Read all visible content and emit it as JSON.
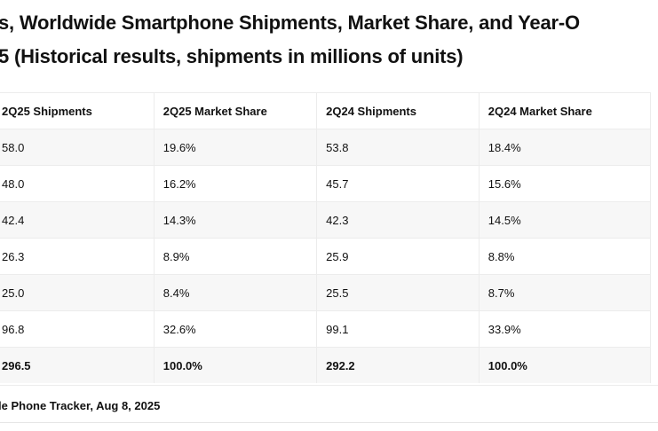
{
  "title_line1": "s, Worldwide Smartphone Shipments, Market Share, and Year-O",
  "title_line2": "5 (Historical results, shipments in millions of units)",
  "table": {
    "headers": [
      "2Q25 Shipments",
      "2Q25 Market Share",
      "2Q24 Shipments",
      "2Q24 Market Share"
    ],
    "rows": [
      [
        "58.0",
        "19.6%",
        "53.8",
        "18.4%"
      ],
      [
        "48.0",
        "16.2%",
        "45.7",
        "15.6%"
      ],
      [
        "42.4",
        "14.3%",
        "42.3",
        "14.5%"
      ],
      [
        "26.3",
        "8.9%",
        "25.9",
        "8.8%"
      ],
      [
        "25.0",
        "8.4%",
        "25.5",
        "8.7%"
      ],
      [
        "96.8",
        "32.6%",
        "99.1",
        "33.9%"
      ]
    ],
    "total": [
      "296.5",
      "100.0%",
      "292.2",
      "100.0%"
    ]
  },
  "source": "le Phone Tracker, Aug 8, 2025"
}
